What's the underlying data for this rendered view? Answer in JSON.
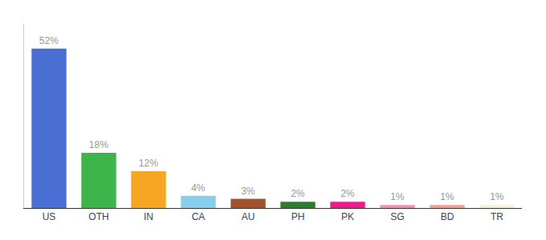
{
  "chart_data": {
    "type": "bar",
    "categories": [
      "US",
      "OTH",
      "IN",
      "CA",
      "AU",
      "PH",
      "PK",
      "SG",
      "BD",
      "TR"
    ],
    "values": [
      52,
      18,
      12,
      4,
      3,
      2,
      2,
      1,
      1,
      1
    ],
    "value_labels": [
      "52%",
      "18%",
      "12%",
      "4%",
      "3%",
      "2%",
      "2%",
      "1%",
      "1%",
      "1%"
    ],
    "colors": [
      "#4a6fd4",
      "#3db54a",
      "#f5a623",
      "#87ceeb",
      "#a0522d",
      "#2e7d32",
      "#e91e8c",
      "#f48fb1",
      "#f4a090",
      "#f5f0d8"
    ],
    "ylim": [
      0,
      60
    ],
    "grid": false,
    "data_labels": true,
    "tick_labels": "x"
  }
}
